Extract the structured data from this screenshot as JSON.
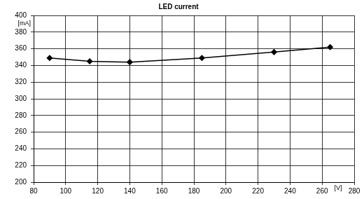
{
  "chart_data": {
    "type": "line",
    "title": "LED current",
    "x_label": "[V]",
    "y_label": "[mA]",
    "x": [
      90,
      115,
      140,
      185,
      230,
      265
    ],
    "series": [
      {
        "name": "LED current",
        "color": "#000000",
        "values": [
          349,
          345,
          344,
          349,
          356,
          362
        ],
        "marker": "diamond",
        "line_style": "solid"
      }
    ],
    "xlim": [
      80,
      280
    ],
    "xticks": [
      80,
      100,
      120,
      140,
      160,
      180,
      200,
      220,
      240,
      260,
      280
    ],
    "ylim": [
      200,
      400
    ],
    "yticks": [
      200,
      220,
      240,
      260,
      280,
      300,
      320,
      340,
      360,
      380,
      400
    ],
    "grid": true
  }
}
